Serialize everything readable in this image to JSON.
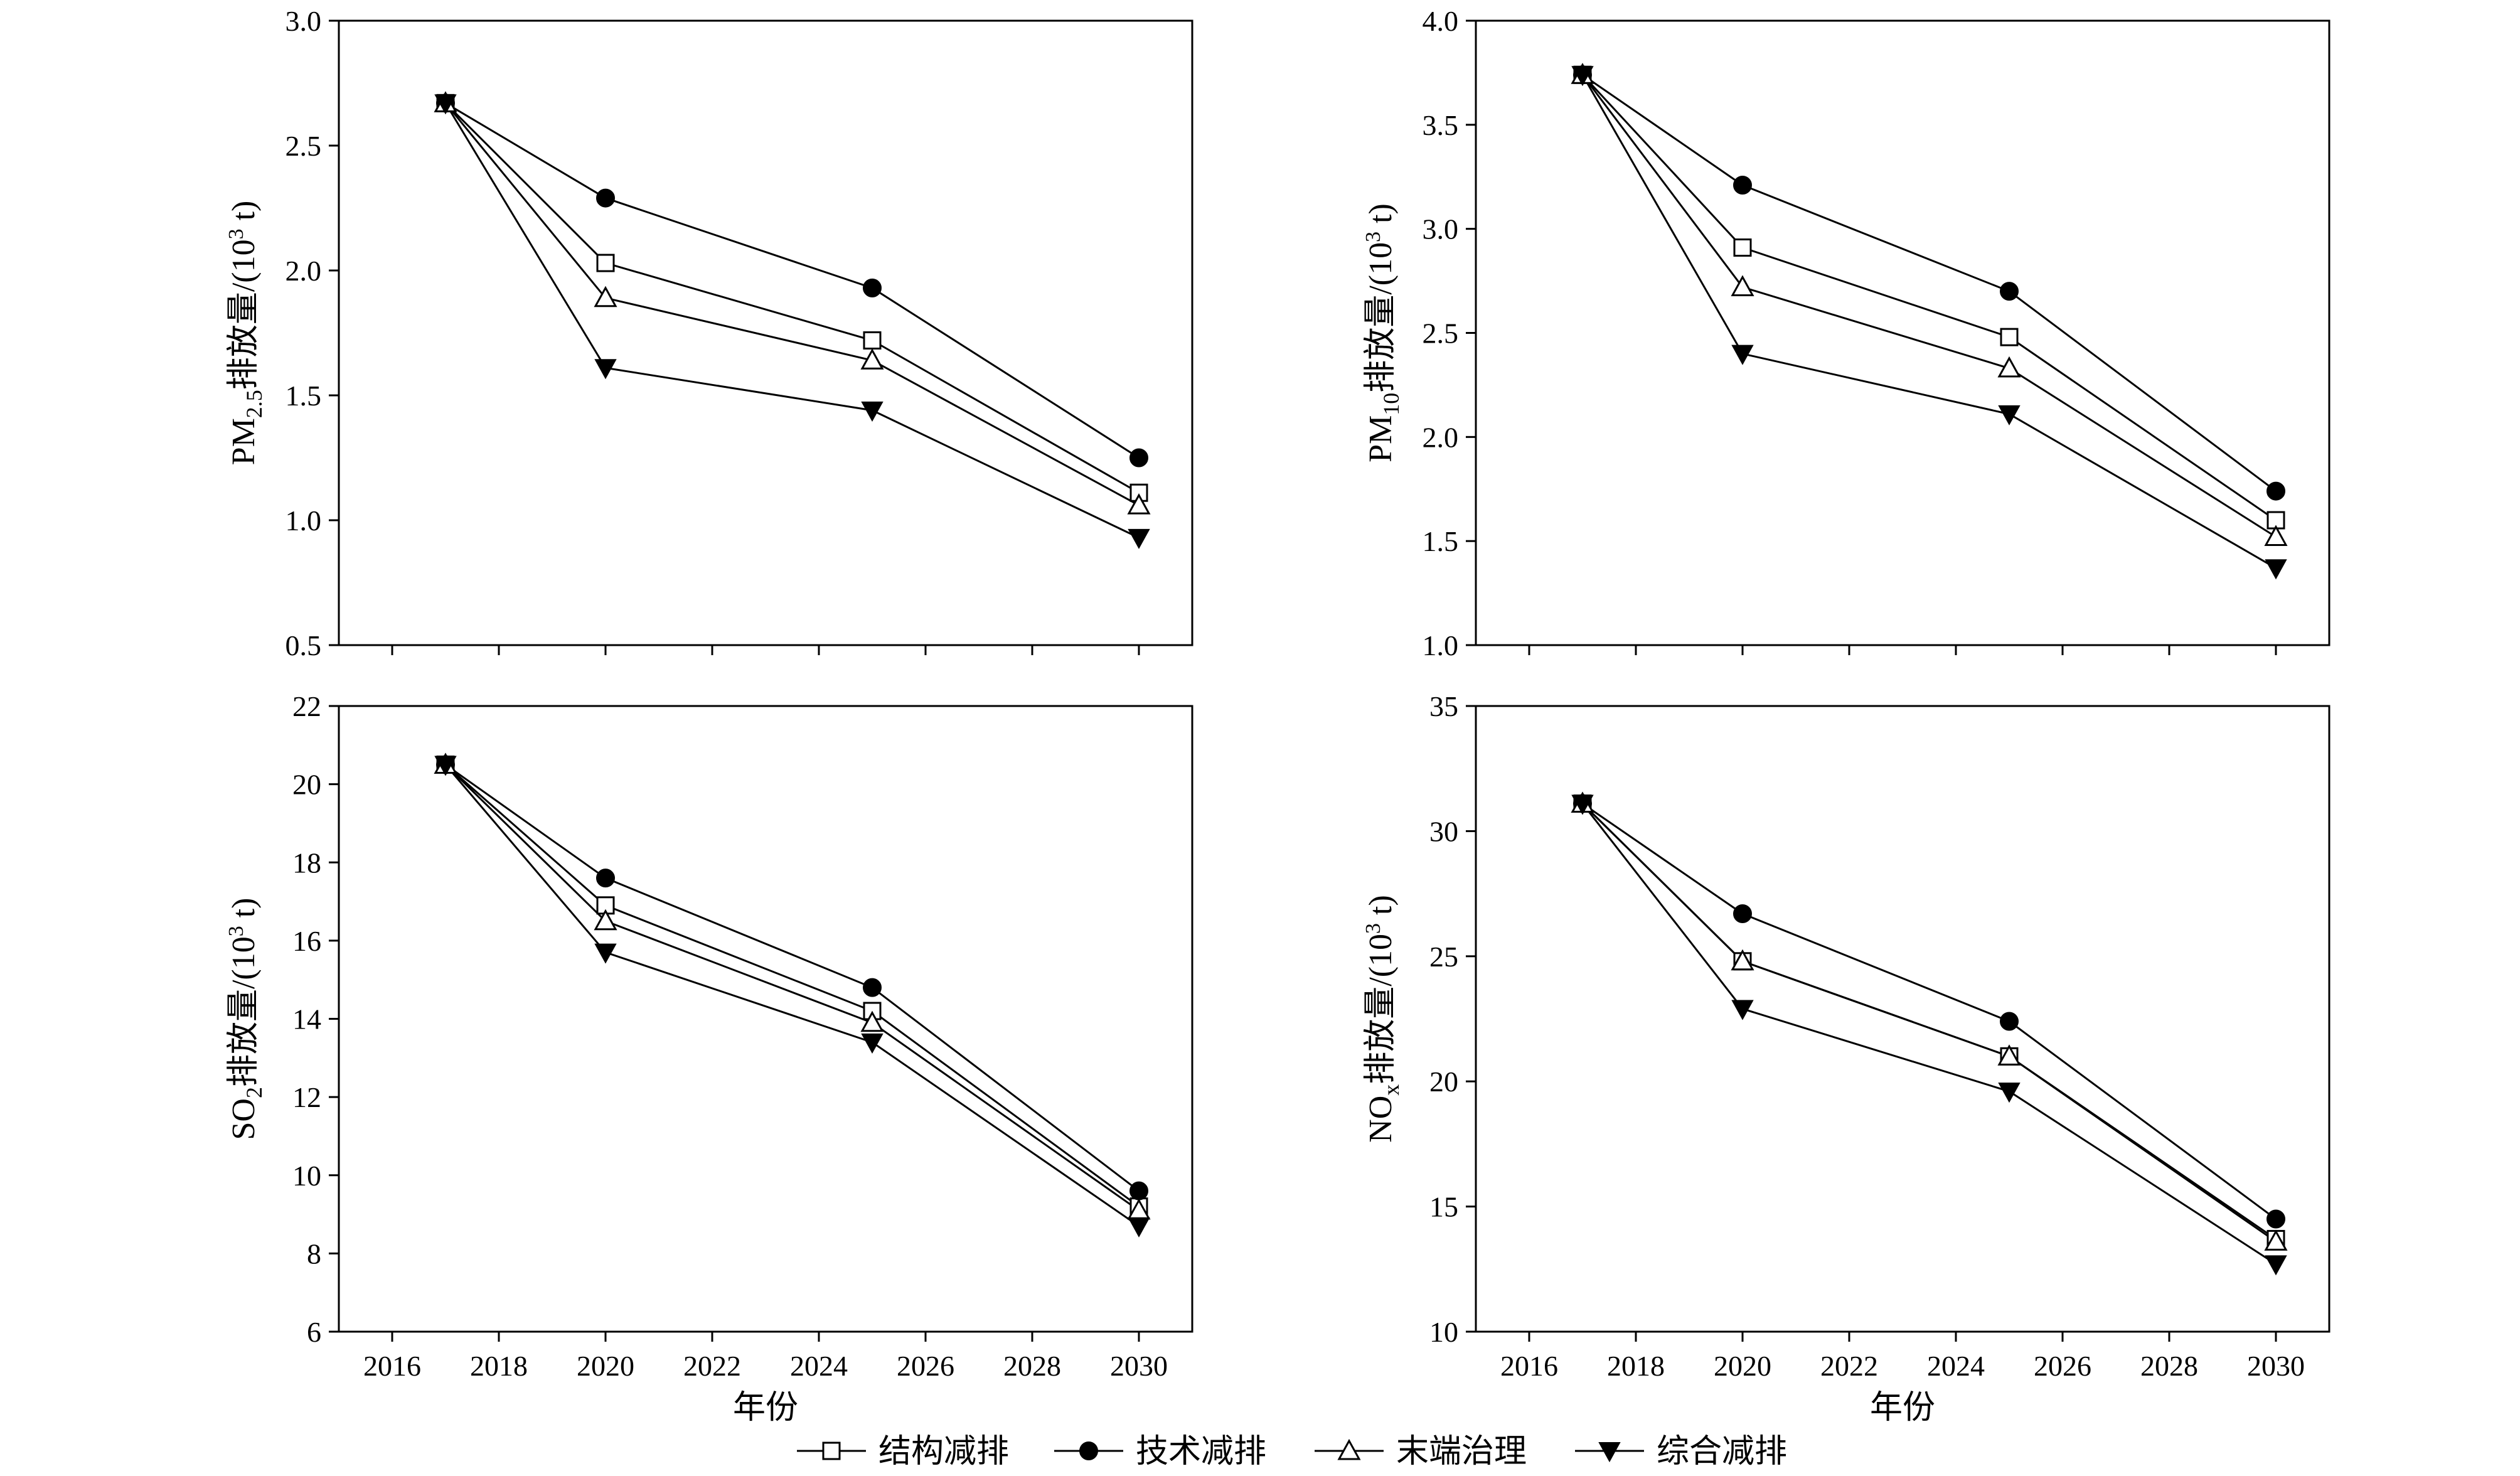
{
  "chart_data": [
    {
      "type": "line",
      "id": "pm25",
      "ylabel_text": "排放量/(10",
      "ylabel_sup": "3",
      "ylabel_tail": " t)",
      "ylabel_species_main": "PM",
      "ylabel_species_sub": "2.5",
      "xlabel": "",
      "xlim": [
        2015,
        2031
      ],
      "xticks": [
        2016,
        2018,
        2020,
        2022,
        2024,
        2026,
        2028,
        2030
      ],
      "xtick_labels": [
        "",
        "",
        "",
        "",
        "",
        "",
        "",
        ""
      ],
      "ylim": [
        0.5,
        3.0
      ],
      "yticks": [
        0.5,
        1.0,
        1.5,
        2.0,
        2.5,
        3.0
      ],
      "ytick_labels": [
        "0.5",
        "1.0",
        "1.5",
        "2.0",
        "2.5",
        "3.0"
      ],
      "x": [
        2017,
        2020,
        2025,
        2030
      ],
      "series": [
        {
          "name": "结构减排",
          "marker": "square-open",
          "values": [
            2.67,
            2.03,
            1.72,
            1.11
          ]
        },
        {
          "name": "技术减排",
          "marker": "circle-filled",
          "values": [
            2.67,
            2.29,
            1.93,
            1.25
          ]
        },
        {
          "name": "末端治理",
          "marker": "triangle-up-open",
          "values": [
            2.67,
            1.89,
            1.64,
            1.06
          ]
        },
        {
          "name": "综合减排",
          "marker": "triangle-down-filled",
          "values": [
            2.67,
            1.61,
            1.44,
            0.93
          ]
        }
      ]
    },
    {
      "type": "line",
      "id": "pm10",
      "ylabel_text": "排放量/(10",
      "ylabel_sup": "3",
      "ylabel_tail": " t)",
      "ylabel_species_main": "PM",
      "ylabel_species_sub": "10",
      "xlabel": "",
      "xlim": [
        2015,
        2031
      ],
      "xticks": [
        2016,
        2018,
        2020,
        2022,
        2024,
        2026,
        2028,
        2030
      ],
      "xtick_labels": [
        "",
        "",
        "",
        "",
        "",
        "",
        "",
        ""
      ],
      "ylim": [
        1.0,
        4.0
      ],
      "yticks": [
        1.0,
        1.5,
        2.0,
        2.5,
        3.0,
        3.5,
        4.0
      ],
      "ytick_labels": [
        "1.0",
        "1.5",
        "2.0",
        "2.5",
        "3.0",
        "3.5",
        "4.0"
      ],
      "x": [
        2017,
        2020,
        2025,
        2030
      ],
      "series": [
        {
          "name": "结构减排",
          "marker": "square-open",
          "values": [
            3.74,
            2.91,
            2.48,
            1.6
          ]
        },
        {
          "name": "技术减排",
          "marker": "circle-filled",
          "values": [
            3.74,
            3.21,
            2.7,
            1.74
          ]
        },
        {
          "name": "末端治理",
          "marker": "triangle-up-open",
          "values": [
            3.74,
            2.72,
            2.33,
            1.52
          ]
        },
        {
          "name": "综合减排",
          "marker": "triangle-down-filled",
          "values": [
            3.74,
            2.4,
            2.11,
            1.37
          ]
        }
      ]
    },
    {
      "type": "line",
      "id": "so2",
      "ylabel_text": "排放量/(10",
      "ylabel_sup": "3",
      "ylabel_tail": " t)",
      "ylabel_species_main": "SO",
      "ylabel_species_sub": "2",
      "xlabel": "年份",
      "xlim": [
        2015,
        2031
      ],
      "xticks": [
        2016,
        2018,
        2020,
        2022,
        2024,
        2026,
        2028,
        2030
      ],
      "xtick_labels": [
        "2016",
        "2018",
        "2020",
        "2022",
        "2024",
        "2026",
        "2028",
        "2030"
      ],
      "ylim": [
        6,
        22
      ],
      "yticks": [
        6,
        8,
        10,
        12,
        14,
        16,
        18,
        20,
        22
      ],
      "ytick_labels": [
        "6",
        "8",
        "10",
        "12",
        "14",
        "16",
        "18",
        "20",
        "22"
      ],
      "x": [
        2017,
        2020,
        2025,
        2030
      ],
      "series": [
        {
          "name": "结构减排",
          "marker": "square-open",
          "values": [
            20.5,
            16.9,
            14.2,
            9.2
          ]
        },
        {
          "name": "技术减排",
          "marker": "circle-filled",
          "values": [
            20.5,
            17.6,
            14.8,
            9.6
          ]
        },
        {
          "name": "末端治理",
          "marker": "triangle-up-open",
          "values": [
            20.5,
            16.5,
            13.9,
            9.1
          ]
        },
        {
          "name": "综合减排",
          "marker": "triangle-down-filled",
          "values": [
            20.5,
            15.7,
            13.4,
            8.7
          ]
        }
      ]
    },
    {
      "type": "line",
      "id": "nox",
      "ylabel_text": "排放量/(10",
      "ylabel_sup": "3",
      "ylabel_tail": " t)",
      "ylabel_species_main": "NO",
      "ylabel_species_sub": "x",
      "xlabel": "年份",
      "xlim": [
        2015,
        2031
      ],
      "xticks": [
        2016,
        2018,
        2020,
        2022,
        2024,
        2026,
        2028,
        2030
      ],
      "xtick_labels": [
        "2016",
        "2018",
        "2020",
        "2022",
        "2024",
        "2026",
        "2028",
        "2030"
      ],
      "ylim": [
        10,
        35
      ],
      "yticks": [
        10,
        15,
        20,
        25,
        30,
        35
      ],
      "ytick_labels": [
        "10",
        "15",
        "20",
        "25",
        "30",
        "35"
      ],
      "x": [
        2017,
        2020,
        2025,
        2030
      ],
      "series": [
        {
          "name": "结构减排",
          "marker": "square-open",
          "values": [
            31.1,
            24.8,
            21.0,
            13.7
          ]
        },
        {
          "name": "技术减排",
          "marker": "circle-filled",
          "values": [
            31.1,
            26.7,
            22.4,
            14.5
          ]
        },
        {
          "name": "末端治理",
          "marker": "triangle-up-open",
          "values": [
            31.1,
            24.8,
            21.0,
            13.6
          ]
        },
        {
          "name": "综合减排",
          "marker": "triangle-down-filled",
          "values": [
            31.1,
            22.9,
            19.6,
            12.7
          ]
        }
      ]
    }
  ],
  "legend": {
    "placement": "bottom-center",
    "items": [
      {
        "label": "结构减排",
        "marker": "square-open"
      },
      {
        "label": "技术减排",
        "marker": "circle-filled"
      },
      {
        "label": "末端治理",
        "marker": "triangle-up-open"
      },
      {
        "label": "综合减排",
        "marker": "triangle-down-filled"
      }
    ]
  },
  "colors": {
    "line": "#000000",
    "background": "#ffffff"
  }
}
